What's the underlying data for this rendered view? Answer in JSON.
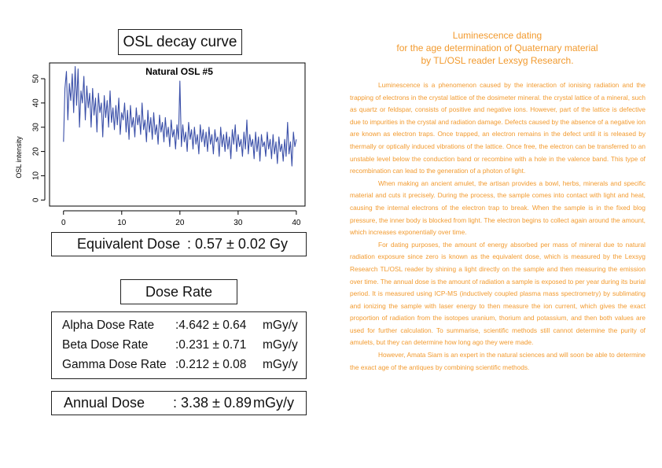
{
  "osl_title": "OSL decay curve",
  "equivalent_dose": {
    "label": "Equivalent Dose",
    "value": ": 0.57 ± 0.02 Gy"
  },
  "dose_rate_title": "Dose Rate",
  "dose_rates": [
    {
      "label": "Alpha Dose Rate",
      "value": ":4.642 ± 0.64",
      "unit": "mGy/y"
    },
    {
      "label": "Beta Dose Rate",
      "value": ":0.231 ± 0.71",
      "unit": "mGy/y"
    },
    {
      "label": "Gamma Dose Rate",
      "value": ":0.212 ± 0.08",
      "unit": "mGy/y"
    }
  ],
  "annual_dose": {
    "label": "Annual Dose",
    "value": ": 3.38 ± 0.89",
    "unit": "mGy/y"
  },
  "article": {
    "title_lines": [
      "Luminescence dating",
      "for the age determination of Quaternary material",
      "by TL/OSL reader Lexsyg Research."
    ],
    "paragraphs": [
      "Luminescence is a phenomenon caused by the interaction of ionising radiation and the trapping of electrons in the crystal lattice of the dosimeter mineral. the crystal lattice of a mineral, such as quartz or feldspar, consists of positive and negative ions. However, part of the lattice is defective due to impurities in the crystal and radiation damage. Defects caused by the absence of a negative ion are known as electron traps. Once trapped, an electron remains in the defect until it is released by thermally or optically induced vibrations of the lattice. Once free, the electron can be transferred to an unstable level below the conduction band or recombine with a hole in the valence band. This type of recombination can lead to the generation of a photon of light.",
      "When making an ancient amulet, the artisan provides a bowl, herbs, minerals and specific material and cuts it precisely. During the process, the sample comes into contact with light and heat, causing the internal electrons of the electron trap to break. When the sample is in the fixed blog pressure, the inner body is blocked from light. The electron begins to collect again around the amount, which increases exponentially over time.",
      "For dating purposes, the amount of energy absorbed per mass of mineral due to natural radiation exposure since zero is known as the equivalent dose, which is measured by the Lexsyg Research TL/OSL reader by shining a light directly on the sample and then measuring the emission over time. The annual dose is the amount of radiation a sample is exposed to per year during its burial period. It is measured using ICP-MS (inductively coupled plasma mass spectrometry) by sublimating and ionizing the sample with laser energy to then measure the ion current, which gives the exact proportion of radiation from the isotopes uranium, thorium and potassium, and then both values are used for further calculation. To summarise, scientific methods still cannot determine the purity of amulets, but they can determine how long ago they were made.",
      "However, Amata Siam is an expert in the natural sciences and will soon be able to determine the exact age of the antiques by combining scientific methods."
    ]
  },
  "chart_data": {
    "type": "line",
    "title": "Natural OSL #5",
    "xlabel": "",
    "ylabel": "OSL intensity",
    "xlim": [
      0,
      40
    ],
    "ylim": [
      0,
      55
    ],
    "xticks": [
      0,
      10,
      20,
      30,
      40
    ],
    "yticks": [
      0,
      10,
      20,
      30,
      40,
      50
    ],
    "grid": false,
    "line_color": "#3a4fa8",
    "series": [
      {
        "x": [
          0,
          0.25,
          0.5,
          0.75,
          1,
          1.25,
          1.5,
          1.75,
          2,
          2.25,
          2.5,
          2.75,
          3,
          3.25,
          3.5,
          3.75,
          4,
          4.25,
          4.5,
          4.75,
          5,
          5.25,
          5.5,
          5.75,
          6,
          6.25,
          6.5,
          6.75,
          7,
          7.25,
          7.5,
          7.75,
          8,
          8.25,
          8.5,
          8.75,
          9,
          9.25,
          9.5,
          9.75,
          10,
          10.25,
          10.5,
          10.75,
          11,
          11.25,
          11.5,
          11.75,
          12,
          12.25,
          12.5,
          12.75,
          13,
          13.25,
          13.5,
          13.75,
          14,
          14.25,
          14.5,
          14.75,
          15,
          15.25,
          15.5,
          15.75,
          16,
          16.25,
          16.5,
          16.75,
          17,
          17.25,
          17.5,
          17.75,
          18,
          18.25,
          18.5,
          18.75,
          19,
          19.25,
          19.5,
          19.75,
          20,
          20.25,
          20.5,
          20.75,
          21,
          21.25,
          21.5,
          21.75,
          22,
          22.25,
          22.5,
          22.75,
          23,
          23.25,
          23.5,
          23.75,
          24,
          24.25,
          24.5,
          24.75,
          25,
          25.25,
          25.5,
          25.75,
          26,
          26.25,
          26.5,
          26.75,
          27,
          27.25,
          27.5,
          27.75,
          28,
          28.25,
          28.5,
          28.75,
          29,
          29.25,
          29.5,
          29.75,
          30,
          30.25,
          30.5,
          30.75,
          31,
          31.25,
          31.5,
          31.75,
          32,
          32.25,
          32.5,
          32.75,
          33,
          33.25,
          33.5,
          33.75,
          34,
          34.25,
          34.5,
          34.75,
          35,
          35.25,
          35.5,
          35.75,
          36,
          36.25,
          36.5,
          36.75,
          37,
          37.25,
          37.5,
          37.75,
          38,
          38.25,
          38.5,
          38.75,
          39,
          39.25,
          39.5,
          39.75,
          40
        ],
        "y": [
          24,
          46,
          53,
          33,
          48,
          41,
          52,
          36,
          55,
          39,
          54,
          30,
          45,
          40,
          51,
          33,
          47,
          38,
          44,
          30,
          46,
          35,
          42,
          28,
          44,
          36,
          40,
          26,
          43,
          34,
          41,
          30,
          45,
          32,
          38,
          29,
          39,
          31,
          42,
          27,
          36,
          33,
          40,
          28,
          37,
          25,
          39,
          30,
          34,
          26,
          38,
          31,
          35,
          27,
          40,
          29,
          33,
          24,
          37,
          28,
          34,
          25,
          36,
          27,
          31,
          23,
          35,
          28,
          32,
          24,
          34,
          26,
          30,
          22,
          33,
          26,
          29,
          21,
          31,
          25,
          49,
          22,
          31,
          24,
          28,
          20,
          32,
          25,
          29,
          21,
          30,
          23,
          27,
          19,
          31,
          24,
          29,
          22,
          28,
          20,
          30,
          23,
          27,
          19,
          29,
          24,
          26,
          18,
          30,
          22,
          27,
          20,
          28,
          21,
          26,
          17,
          29,
          23,
          31,
          20,
          27,
          22,
          25,
          18,
          28,
          21,
          33,
          19,
          27,
          22,
          25,
          17,
          28,
          20,
          26,
          16,
          27,
          22,
          24,
          18,
          28,
          21,
          25,
          17,
          27,
          19,
          24,
          15,
          26,
          20,
          23,
          16,
          25,
          18,
          32,
          19,
          24,
          14,
          28,
          22,
          25
        ]
      }
    ]
  }
}
